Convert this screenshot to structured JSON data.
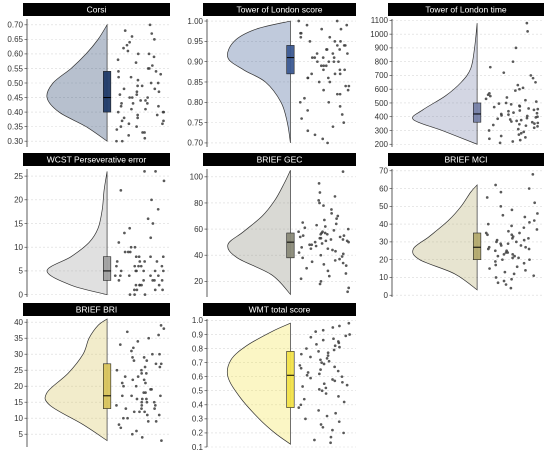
{
  "chart_data": [
    {
      "type": "raincloud",
      "title": "Corsi",
      "ylim": [
        0.28,
        0.72
      ],
      "yticks": [
        0.3,
        0.35,
        0.4,
        0.45,
        0.5,
        0.55,
        0.6,
        0.65,
        0.7
      ],
      "tick_labels": [
        "0.30",
        "0.35",
        "0.40",
        "0.45",
        "0.50",
        "0.55",
        "0.60",
        "0.65",
        "0.70"
      ],
      "color": "#1f3a68",
      "box": {
        "q1": 0.4,
        "median": 0.45,
        "q3": 0.54
      },
      "density": [
        [
          0.3,
          0.0
        ],
        [
          0.35,
          0.35
        ],
        [
          0.4,
          0.8
        ],
        [
          0.45,
          1.0
        ],
        [
          0.5,
          0.9
        ],
        [
          0.55,
          0.6
        ],
        [
          0.6,
          0.35
        ],
        [
          0.65,
          0.15
        ],
        [
          0.7,
          0.0
        ]
      ],
      "points": [
        0.7,
        0.68,
        0.67,
        0.66,
        0.65,
        0.64,
        0.63,
        0.62,
        0.61,
        0.6,
        0.6,
        0.59,
        0.58,
        0.57,
        0.56,
        0.55,
        0.55,
        0.54,
        0.54,
        0.53,
        0.52,
        0.52,
        0.51,
        0.5,
        0.5,
        0.49,
        0.49,
        0.48,
        0.48,
        0.47,
        0.47,
        0.46,
        0.46,
        0.45,
        0.45,
        0.45,
        0.44,
        0.44,
        0.43,
        0.43,
        0.43,
        0.42,
        0.42,
        0.41,
        0.41,
        0.4,
        0.4,
        0.4,
        0.39,
        0.39,
        0.38,
        0.38,
        0.37,
        0.37,
        0.36,
        0.36,
        0.35,
        0.35,
        0.34,
        0.33,
        0.33,
        0.32,
        0.31,
        0.3,
        0.3
      ]
    },
    {
      "type": "raincloud",
      "title": "Tower of London score",
      "ylim": [
        0.69,
        1.005
      ],
      "yticks": [
        0.7,
        0.75,
        0.8,
        0.85,
        0.9,
        0.95,
        1.0
      ],
      "tick_labels": [
        "0.70",
        "0.75",
        "0.80",
        "0.85",
        "0.90",
        "0.95",
        "1.00"
      ],
      "color": "#3c5a92",
      "box": {
        "q1": 0.87,
        "median": 0.91,
        "q3": 0.94
      },
      "density": [
        [
          0.7,
          0.0
        ],
        [
          0.75,
          0.05
        ],
        [
          0.8,
          0.15
        ],
        [
          0.85,
          0.4
        ],
        [
          0.88,
          0.75
        ],
        [
          0.91,
          1.0
        ],
        [
          0.95,
          0.9
        ],
        [
          0.98,
          0.55
        ],
        [
          1.0,
          0.0
        ]
      ],
      "points": [
        1.0,
        1.0,
        0.99,
        0.99,
        0.98,
        0.98,
        0.97,
        0.97,
        0.96,
        0.96,
        0.95,
        0.95,
        0.95,
        0.94,
        0.94,
        0.94,
        0.93,
        0.93,
        0.93,
        0.92,
        0.92,
        0.92,
        0.91,
        0.91,
        0.91,
        0.91,
        0.9,
        0.9,
        0.9,
        0.9,
        0.89,
        0.89,
        0.89,
        0.88,
        0.88,
        0.88,
        0.87,
        0.87,
        0.87,
        0.86,
        0.86,
        0.86,
        0.85,
        0.85,
        0.84,
        0.84,
        0.83,
        0.83,
        0.82,
        0.82,
        0.81,
        0.8,
        0.8,
        0.79,
        0.78,
        0.77,
        0.76,
        0.75,
        0.74,
        0.73,
        0.72,
        0.71,
        0.7
      ]
    },
    {
      "type": "raincloud",
      "title": "Tower of London time",
      "ylim": [
        180,
        1110
      ],
      "yticks": [
        200,
        300,
        400,
        500,
        600,
        700,
        800,
        900,
        1000,
        1100
      ],
      "tick_labels": [
        "200",
        "300",
        "400",
        "500",
        "600",
        "700",
        "800",
        "900",
        "1000",
        "1100"
      ],
      "color": "#7681a8",
      "box": {
        "q1": 360,
        "median": 420,
        "q3": 500
      },
      "density": [
        [
          200,
          0.0
        ],
        [
          300,
          0.55
        ],
        [
          380,
          1.0
        ],
        [
          450,
          0.85
        ],
        [
          550,
          0.5
        ],
        [
          650,
          0.25
        ],
        [
          750,
          0.1
        ],
        [
          900,
          0.04
        ],
        [
          1080,
          0.0
        ]
      ],
      "points": [
        1080,
        1020,
        900,
        800,
        760,
        720,
        700,
        680,
        650,
        630,
        610,
        600,
        590,
        570,
        560,
        550,
        540,
        530,
        520,
        510,
        500,
        495,
        490,
        480,
        475,
        470,
        460,
        455,
        450,
        445,
        440,
        430,
        425,
        420,
        415,
        410,
        405,
        400,
        395,
        390,
        385,
        380,
        375,
        370,
        365,
        360,
        355,
        350,
        345,
        340,
        335,
        330,
        320,
        310,
        300,
        290,
        280,
        270,
        260,
        250,
        240,
        230,
        220,
        210
      ]
    },
    {
      "type": "raincloud",
      "title": "WCST Perseverative error",
      "ylim": [
        -0.5,
        26.5
      ],
      "yticks": [
        0,
        5,
        10,
        15,
        20,
        25
      ],
      "tick_labels": [
        "0",
        "5",
        "10",
        "15",
        "20",
        "25"
      ],
      "color": "#a0a0a0",
      "box": {
        "q1": 3,
        "median": 5,
        "q3": 8
      },
      "density": [
        [
          0,
          0.0
        ],
        [
          2,
          0.6
        ],
        [
          5,
          1.0
        ],
        [
          8,
          0.6
        ],
        [
          11,
          0.3
        ],
        [
          14,
          0.15
        ],
        [
          18,
          0.08
        ],
        [
          22,
          0.05
        ],
        [
          26,
          0.0
        ]
      ],
      "points": [
        26,
        26,
        24,
        22,
        20,
        18,
        16,
        15,
        14,
        13,
        12,
        11,
        10,
        10,
        9,
        9,
        9,
        8,
        8,
        8,
        8,
        7,
        7,
        7,
        7,
        6,
        6,
        6,
        6,
        6,
        5,
        5,
        5,
        5,
        5,
        5,
        4,
        4,
        4,
        4,
        4,
        3,
        3,
        3,
        3,
        3,
        2,
        2,
        2,
        2,
        2,
        1,
        1,
        1,
        1,
        0,
        0,
        0
      ]
    },
    {
      "type": "raincloud",
      "title": "BRIEF GEC",
      "ylim": [
        8,
        106
      ],
      "yticks": [
        20,
        40,
        60,
        80,
        100
      ],
      "tick_labels": [
        "20",
        "40",
        "60",
        "80",
        "100"
      ],
      "color": "#8a8a78",
      "box": {
        "q1": 38,
        "median": 50,
        "q3": 57
      },
      "density": [
        [
          10,
          0.0
        ],
        [
          25,
          0.3
        ],
        [
          38,
          0.85
        ],
        [
          48,
          1.0
        ],
        [
          58,
          0.75
        ],
        [
          70,
          0.45
        ],
        [
          82,
          0.25
        ],
        [
          95,
          0.1
        ],
        [
          105,
          0.0
        ]
      ],
      "points": [
        104,
        95,
        88,
        85,
        82,
        80,
        78,
        75,
        72,
        70,
        68,
        67,
        65,
        64,
        63,
        62,
        61,
        60,
        59,
        58,
        58,
        57,
        57,
        56,
        56,
        55,
        55,
        54,
        54,
        53,
        53,
        52,
        52,
        51,
        51,
        50,
        50,
        49,
        48,
        48,
        47,
        46,
        45,
        45,
        44,
        43,
        42,
        41,
        40,
        39,
        38,
        37,
        36,
        35,
        34,
        33,
        32,
        30,
        28,
        26,
        24,
        22,
        20,
        18,
        15,
        12
      ]
    },
    {
      "type": "raincloud",
      "title": "BRIEF MCI",
      "ylim": [
        -1,
        71
      ],
      "yticks": [
        0,
        10,
        20,
        30,
        40,
        50,
        60,
        70
      ],
      "tick_labels": [
        "0",
        "10",
        "20",
        "30",
        "40",
        "50",
        "60",
        "70"
      ],
      "color": "#b3aa6e",
      "box": {
        "q1": 20,
        "median": 27,
        "q3": 35
      },
      "density": [
        [
          3,
          0.0
        ],
        [
          12,
          0.35
        ],
        [
          20,
          0.9
        ],
        [
          26,
          1.0
        ],
        [
          33,
          0.75
        ],
        [
          42,
          0.45
        ],
        [
          50,
          0.25
        ],
        [
          58,
          0.1
        ],
        [
          62,
          0.0
        ]
      ],
      "points": [
        68,
        62,
        60,
        58,
        55,
        52,
        50,
        48,
        46,
        45,
        44,
        42,
        41,
        40,
        39,
        38,
        37,
        36,
        35,
        35,
        34,
        34,
        33,
        32,
        32,
        31,
        31,
        30,
        30,
        29,
        29,
        28,
        28,
        27,
        27,
        26,
        26,
        25,
        25,
        24,
        24,
        23,
        23,
        22,
        22,
        21,
        21,
        20,
        20,
        19,
        18,
        17,
        16,
        15,
        14,
        13,
        12,
        11,
        10,
        9,
        8,
        7,
        6,
        4
      ]
    },
    {
      "type": "raincloud",
      "title": "BRIEF BRI",
      "ylim": [
        1,
        41
      ],
      "yticks": [
        5,
        10,
        15,
        20,
        25,
        30,
        35,
        40
      ],
      "tick_labels": [
        "5",
        "10",
        "15",
        "20",
        "25",
        "30",
        "35",
        "40"
      ],
      "color": "#d8c45c",
      "box": {
        "q1": 13,
        "median": 17,
        "q3": 27
      },
      "density": [
        [
          3,
          0.0
        ],
        [
          8,
          0.4
        ],
        [
          14,
          0.95
        ],
        [
          18,
          1.0
        ],
        [
          24,
          0.65
        ],
        [
          30,
          0.4
        ],
        [
          35,
          0.3
        ],
        [
          39,
          0.15
        ],
        [
          41,
          0.0
        ]
      ],
      "points": [
        39,
        38,
        37,
        36,
        35,
        34,
        33,
        32,
        31,
        30,
        30,
        29,
        29,
        28,
        28,
        27,
        27,
        26,
        26,
        25,
        25,
        24,
        24,
        23,
        23,
        22,
        22,
        21,
        21,
        20,
        20,
        19,
        19,
        18,
        18,
        17,
        17,
        17,
        16,
        16,
        16,
        15,
        15,
        15,
        14,
        14,
        14,
        13,
        13,
        13,
        12,
        12,
        12,
        11,
        11,
        10,
        10,
        9,
        9,
        8,
        7,
        6,
        5,
        4,
        3
      ]
    },
    {
      "type": "raincloud",
      "title": "WMT total score",
      "ylim": [
        0.1,
        1.01
      ],
      "yticks": [
        0.1,
        0.2,
        0.3,
        0.4,
        0.5,
        0.6,
        0.7,
        0.8,
        0.9,
        1.0
      ],
      "tick_labels": [
        "0.1",
        "0.2",
        "0.3",
        "0.4",
        "0.5",
        "0.6",
        "0.7",
        "0.8",
        "0.9",
        "1.0"
      ],
      "color": "#f2e24a",
      "box": {
        "q1": 0.38,
        "median": 0.61,
        "q3": 0.78
      },
      "density": [
        [
          0.12,
          0.0
        ],
        [
          0.2,
          0.25
        ],
        [
          0.3,
          0.5
        ],
        [
          0.45,
          0.8
        ],
        [
          0.6,
          1.0
        ],
        [
          0.72,
          0.95
        ],
        [
          0.82,
          0.7
        ],
        [
          0.92,
          0.3
        ],
        [
          0.98,
          0.0
        ]
      ],
      "points": [
        0.98,
        0.96,
        0.95,
        0.93,
        0.92,
        0.9,
        0.89,
        0.88,
        0.87,
        0.86,
        0.85,
        0.84,
        0.83,
        0.82,
        0.81,
        0.8,
        0.79,
        0.78,
        0.77,
        0.76,
        0.75,
        0.74,
        0.73,
        0.72,
        0.71,
        0.7,
        0.69,
        0.68,
        0.67,
        0.66,
        0.65,
        0.64,
        0.63,
        0.62,
        0.61,
        0.6,
        0.59,
        0.58,
        0.57,
        0.56,
        0.55,
        0.54,
        0.53,
        0.52,
        0.51,
        0.5,
        0.48,
        0.46,
        0.44,
        0.42,
        0.4,
        0.38,
        0.36,
        0.34,
        0.32,
        0.3,
        0.28,
        0.26,
        0.24,
        0.22,
        0.2,
        0.17,
        0.15,
        0.13
      ]
    }
  ]
}
